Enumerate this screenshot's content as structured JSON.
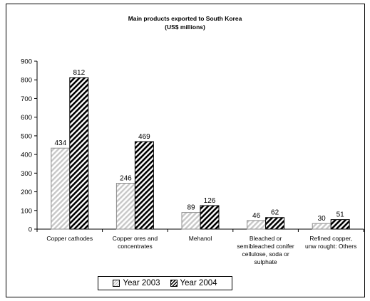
{
  "chart_data": {
    "type": "bar",
    "title": "Main products exported to South Korea",
    "subtitle": "(US$ millions)",
    "xlabel": "",
    "ylabel": "",
    "ylim": [
      0,
      900
    ],
    "yticks": [
      0,
      100,
      200,
      300,
      400,
      500,
      600,
      700,
      800,
      900
    ],
    "grid": false,
    "legend_position": "bottom",
    "categories": [
      [
        "Copper cathodes"
      ],
      [
        "Copper ores and",
        "concentrates"
      ],
      [
        "Mehanol"
      ],
      [
        "Bleached or",
        "semibleached conifer",
        "cellulose, soda or",
        "sulphate"
      ],
      [
        "Refined copper,",
        "unw rought:  Others"
      ]
    ],
    "series": [
      {
        "name": "Year 2003",
        "values": [
          434,
          246,
          89,
          46,
          30
        ],
        "color": "#c8c8c8"
      },
      {
        "name": "Year 2004",
        "values": [
          812,
          469,
          126,
          62,
          51
        ],
        "color": "#000000"
      }
    ]
  }
}
